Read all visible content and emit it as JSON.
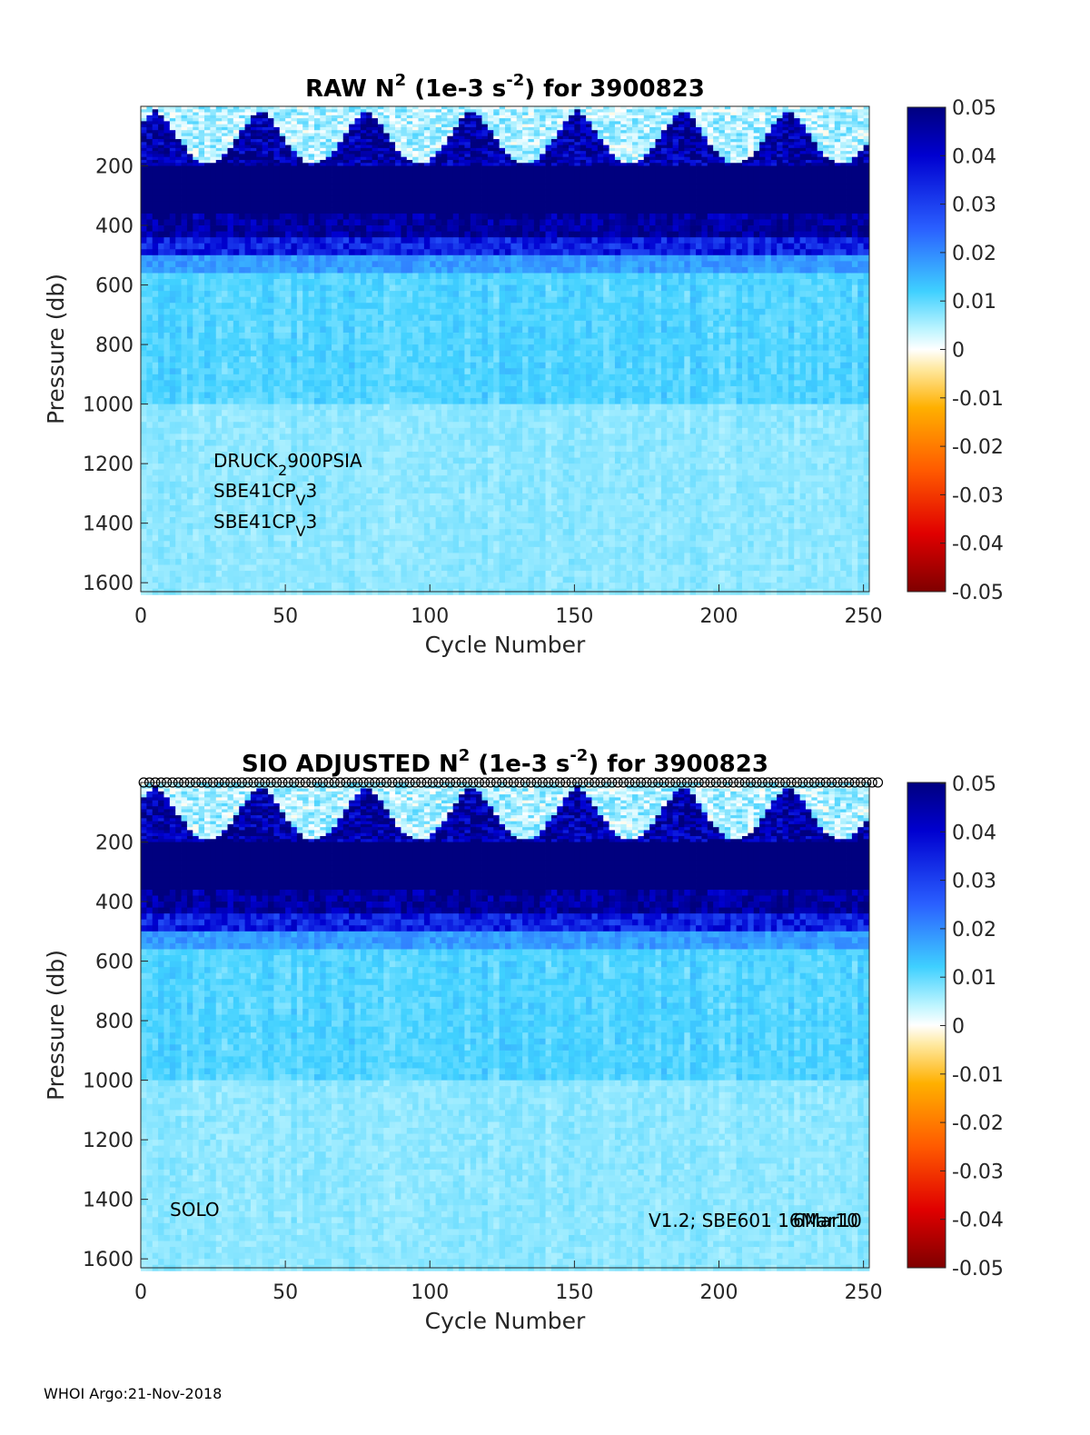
{
  "footer": "WHOI Argo:21-Nov-2018",
  "colorbar": {
    "ticks": [
      "0.05",
      "0.04",
      "0.03",
      "0.02",
      "0.01",
      "0",
      "-0.01",
      "-0.02",
      "-0.03",
      "-0.04",
      "-0.05"
    ]
  },
  "chart_data": [
    {
      "type": "heatmap",
      "title": {
        "prefix": "RAW N",
        "sup1": "2",
        "mid": " (1e-3 s",
        "sup2": "-2",
        "suffix": ") for 3900823"
      },
      "xlabel": "Cycle Number",
      "ylabel": "Pressure (db)",
      "xlim": [
        0,
        252
      ],
      "ylim": [
        1630,
        0
      ],
      "xticks": [
        "0",
        "50",
        "100",
        "150",
        "200",
        "250"
      ],
      "yticks": [
        "200",
        "400",
        "600",
        "800",
        "1000",
        "1200",
        "1400",
        "1600"
      ],
      "clim": [
        -0.05,
        0.05
      ],
      "colormap": "jet-with-white-center",
      "annotations": [
        {
          "base": "DRUCK",
          "sub": "2",
          "rest": "900PSIA"
        },
        {
          "base": "SBE41CP",
          "sub": "V",
          "rest": "3"
        },
        {
          "base": "SBE41CP",
          "sub": "V",
          "rest": "3"
        }
      ],
      "field_bands": [
        {
          "p_range": [
            0,
            200
          ],
          "n2": "variable, seasonal 0 to 0.05"
        },
        {
          "p_range": [
            200,
            360
          ],
          "n2": 0.05
        },
        {
          "p_range": [
            360,
            440
          ],
          "n2": 0.045
        },
        {
          "p_range": [
            440,
            500
          ],
          "n2": 0.035
        },
        {
          "p_range": [
            500,
            560
          ],
          "n2": 0.018
        },
        {
          "p_range": [
            560,
            1000
          ],
          "n2": 0.012
        },
        {
          "p_range": [
            1000,
            1630
          ],
          "n2": 0.008
        }
      ]
    },
    {
      "type": "heatmap",
      "title": {
        "prefix": "SIO  ADJUSTED N",
        "sup1": "2",
        "mid": " (1e-3 s",
        "sup2": "-2",
        "suffix": ") for 3900823"
      },
      "xlabel": "Cycle Number",
      "ylabel": "Pressure (db)",
      "xlim": [
        0,
        252
      ],
      "ylim": [
        1630,
        0
      ],
      "xticks": [
        "0",
        "50",
        "100",
        "150",
        "200",
        "250"
      ],
      "yticks": [
        "200",
        "400",
        "600",
        "800",
        "1000",
        "1200",
        "1400",
        "1600"
      ],
      "clim": [
        -0.05,
        0.05
      ],
      "colormap": "jet-with-white-center",
      "annotation_left": "SOLO",
      "annotation_right": "V1.2; SBE601 16Mar10",
      "annotation_right_overlap": "6Mar10",
      "markers": "circles at top of every cycle"
    }
  ]
}
